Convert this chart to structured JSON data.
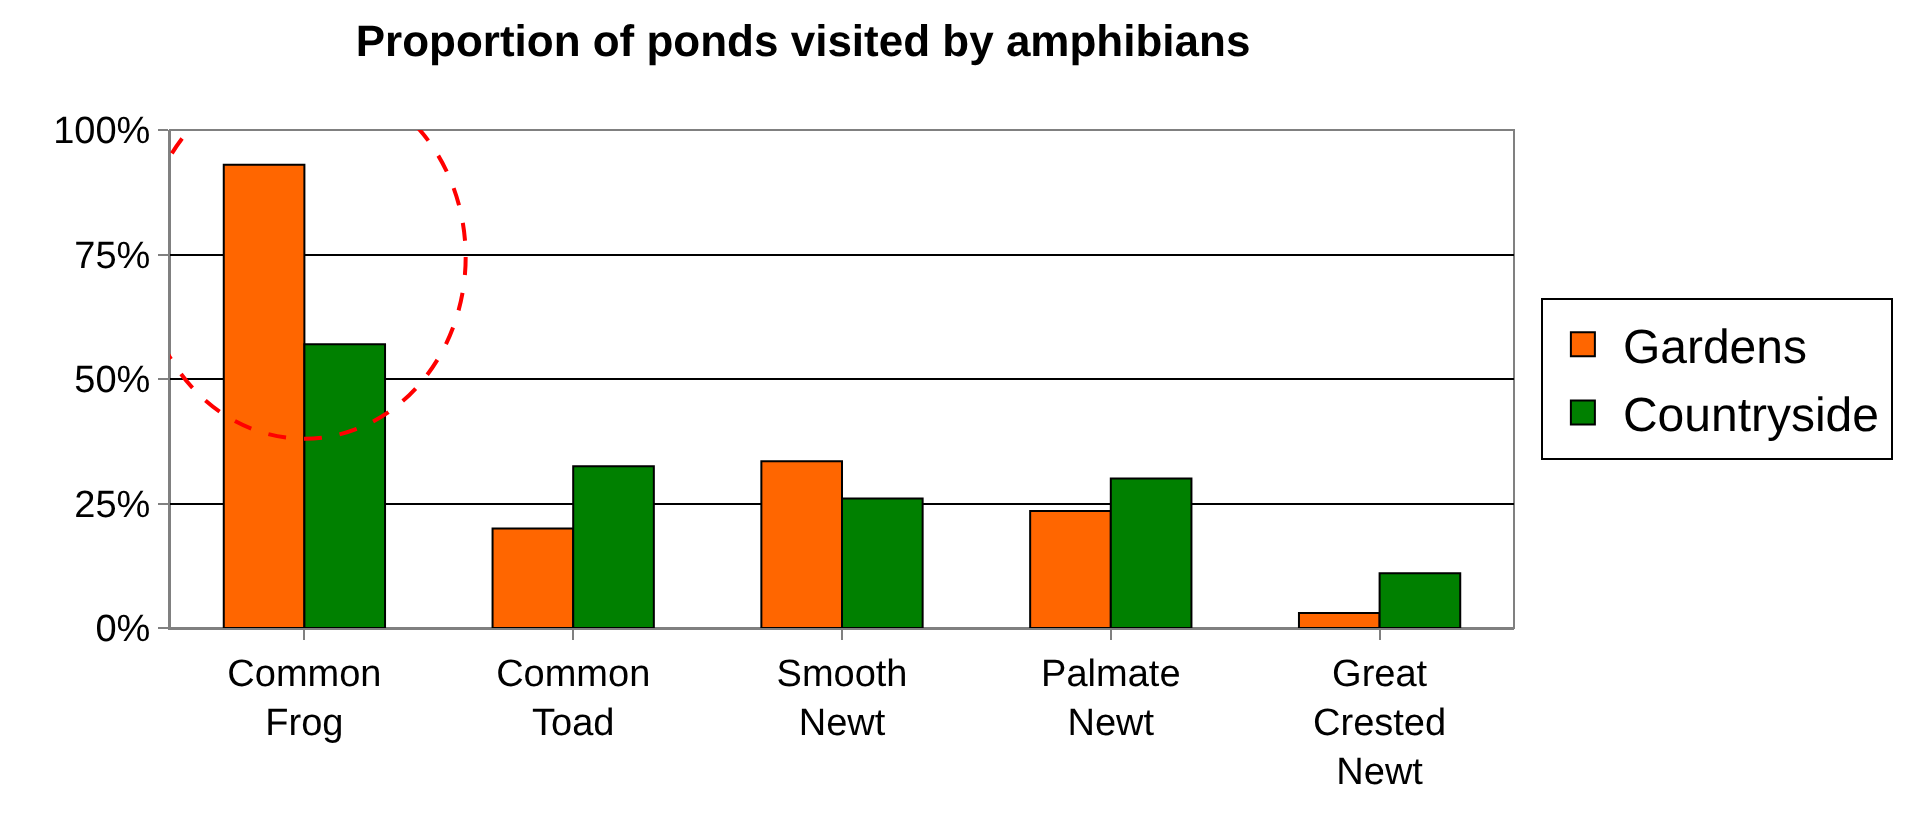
{
  "chart_data": {
    "type": "bar",
    "title": "Proportion of ponds visited by amphibians",
    "categories": [
      "Common Frog",
      "Common Toad",
      "Smooth Newt",
      "Palmate Newt",
      "Great Crested Newt"
    ],
    "series": [
      {
        "name": "Gardens",
        "color": "#ff6600",
        "values": [
          93,
          20,
          33.5,
          23.5,
          3
        ]
      },
      {
        "name": "Countryside",
        "color": "#008000",
        "values": [
          57,
          32.5,
          26,
          30,
          11
        ]
      }
    ],
    "ylim": [
      0,
      100
    ],
    "yticks": [
      {
        "value": 0,
        "label": "0%"
      },
      {
        "value": 25,
        "label": "25%"
      },
      {
        "value": 50,
        "label": "50%"
      },
      {
        "value": 75,
        "label": "75%"
      },
      {
        "value": 100,
        "label": "100%"
      }
    ],
    "grid": "y",
    "legend": "right"
  }
}
